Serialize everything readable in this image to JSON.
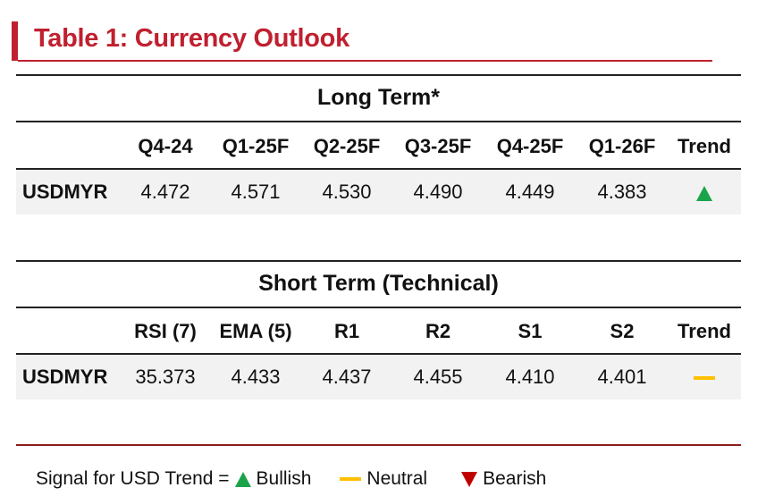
{
  "title": "Table 1: Currency Outlook",
  "colors": {
    "accent": "#c0202f",
    "bullish": "#1aa34a",
    "neutral": "#ffc000",
    "bearish": "#c00000",
    "row_bg": "#f2f2f2"
  },
  "long_term": {
    "title": "Long Term*",
    "headers": [
      "",
      "Q4-24",
      "Q1-25F",
      "Q2-25F",
      "Q3-25F",
      "Q4-25F",
      "Q1-26F",
      "Trend"
    ],
    "row": {
      "pair": "USDMYR",
      "values": [
        "4.472",
        "4.571",
        "4.530",
        "4.490",
        "4.449",
        "4.383"
      ],
      "trend": "bullish",
      "trend_icon": "up-triangle-icon"
    }
  },
  "short_term": {
    "title": "Short Term (Technical)",
    "headers": [
      "",
      "RSI (7)",
      "EMA (5)",
      "R1",
      "R2",
      "S1",
      "S2",
      "Trend"
    ],
    "row": {
      "pair": "USDMYR",
      "values": [
        "35.373",
        "4.433",
        "4.437",
        "4.455",
        "4.410",
        "4.401"
      ],
      "trend": "neutral",
      "trend_icon": "neutral-dash-icon"
    }
  },
  "legend": {
    "prefix": "Signal for USD Trend =",
    "bullish": "Bullish",
    "neutral": "Neutral",
    "bearish": "Bearish"
  }
}
